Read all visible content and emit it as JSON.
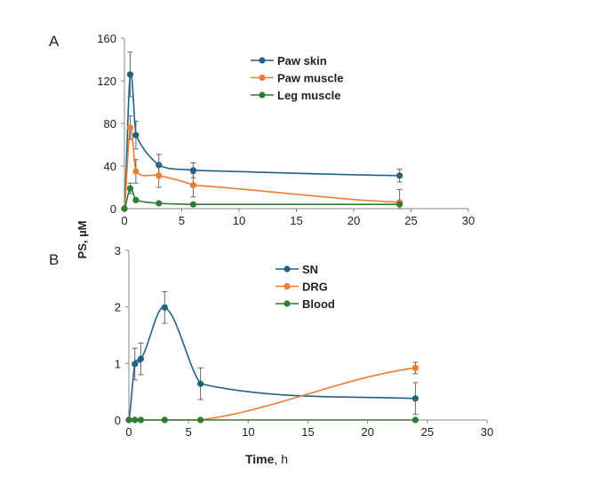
{
  "y_shared_label": "PS, µM",
  "chart_data": [
    {
      "type": "line",
      "panel_label": "A",
      "xlim": [
        0,
        30
      ],
      "xticks": [
        0,
        5,
        10,
        15,
        20,
        25,
        30
      ],
      "ylim": [
        0,
        160
      ],
      "yticks": [
        0,
        40,
        80,
        120,
        160
      ],
      "xlabel": "",
      "grid": false,
      "legend": "top-center",
      "series": [
        {
          "name": "Paw skin",
          "color": "#1f6287",
          "x": [
            0,
            0.5,
            1,
            3,
            6,
            24
          ],
          "y": [
            0,
            126,
            69,
            41,
            36,
            31
          ],
          "err": [
            0,
            21,
            13,
            10,
            7,
            6
          ]
        },
        {
          "name": "Paw muscle",
          "color": "#ed7d31",
          "x": [
            0,
            0.5,
            1,
            3,
            6,
            24
          ],
          "y": [
            0,
            76,
            35,
            31,
            22,
            6
          ],
          "err": [
            0,
            11,
            11,
            11,
            11,
            12
          ]
        },
        {
          "name": "Leg muscle",
          "color": "#2e7d32",
          "x": [
            0,
            0.5,
            1,
            3,
            6,
            24
          ],
          "y": [
            0,
            19,
            8,
            5,
            4,
            4
          ],
          "err": [
            0,
            5,
            1,
            1,
            1,
            1
          ]
        }
      ]
    },
    {
      "type": "line",
      "panel_label": "B",
      "xlim": [
        0,
        30
      ],
      "xticks": [
        0,
        5,
        10,
        15,
        20,
        25,
        30
      ],
      "ylim": [
        0,
        3
      ],
      "yticks": [
        0,
        1,
        2,
        3
      ],
      "xlabel": "Time",
      "xlabel_unit": ", h",
      "grid": false,
      "legend": "top-center",
      "series": [
        {
          "name": "SN",
          "color": "#1f6287",
          "x": [
            0,
            0.5,
            1,
            3,
            6,
            24
          ],
          "y": [
            0,
            0.99,
            1.08,
            1.99,
            0.64,
            0.38
          ],
          "err": [
            0,
            0.28,
            0.28,
            0.28,
            0.28,
            0.28
          ]
        },
        {
          "name": "DRG",
          "color": "#ed7d31",
          "x": [
            0,
            0.5,
            1,
            3,
            6,
            24
          ],
          "y": [
            0,
            0,
            0,
            0,
            0,
            0.92
          ],
          "err": [
            0,
            0,
            0,
            0,
            0,
            0.1
          ]
        },
        {
          "name": "Blood",
          "color": "#2e7d32",
          "x": [
            0,
            0.5,
            1,
            3,
            6,
            24
          ],
          "y": [
            0,
            0,
            0,
            0,
            0,
            0
          ],
          "err": [
            0,
            0,
            0,
            0,
            0,
            0
          ]
        }
      ]
    }
  ]
}
